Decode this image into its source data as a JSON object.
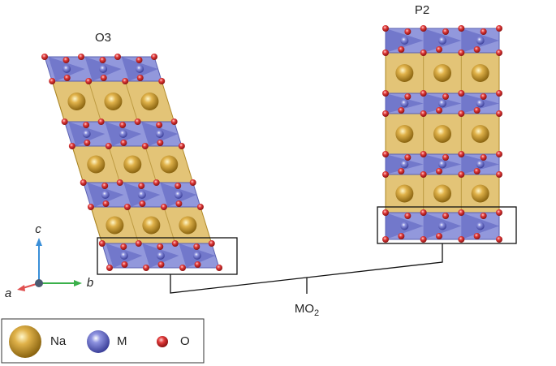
{
  "structures": [
    {
      "label": "O3"
    },
    {
      "label": "P2"
    }
  ],
  "bracket": {
    "label": "MO",
    "subscript": "2"
  },
  "axes": {
    "a": "a",
    "b": "b",
    "c": "c"
  },
  "legend": [
    {
      "label": "Na"
    },
    {
      "label": "M"
    },
    {
      "label": "O"
    }
  ]
}
